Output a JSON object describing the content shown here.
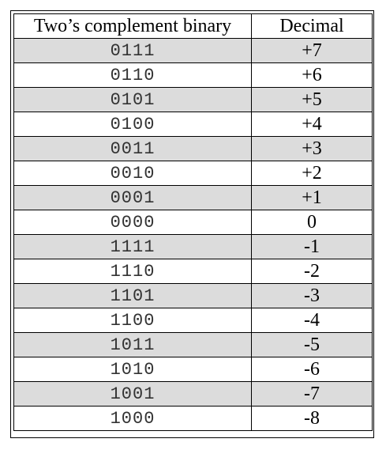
{
  "table": {
    "headers": {
      "binary": "Two’s complement binary",
      "decimal": "Decimal"
    },
    "shade_color": "#dcdcdc",
    "rows": [
      {
        "binary": "0111",
        "decimal": "+7"
      },
      {
        "binary": "0110",
        "decimal": "+6"
      },
      {
        "binary": "0101",
        "decimal": "+5"
      },
      {
        "binary": "0100",
        "decimal": "+4"
      },
      {
        "binary": "0011",
        "decimal": "+3"
      },
      {
        "binary": "0010",
        "decimal": "+2"
      },
      {
        "binary": "0001",
        "decimal": "+1"
      },
      {
        "binary": "0000",
        "decimal": "0"
      },
      {
        "binary": "1111",
        "decimal": "-1"
      },
      {
        "binary": "1110",
        "decimal": "-2"
      },
      {
        "binary": "1101",
        "decimal": "-3"
      },
      {
        "binary": "1100",
        "decimal": "-4"
      },
      {
        "binary": "1011",
        "decimal": "-5"
      },
      {
        "binary": "1010",
        "decimal": "-6"
      },
      {
        "binary": "1001",
        "decimal": "-7"
      },
      {
        "binary": "1000",
        "decimal": "-8"
      }
    ]
  }
}
